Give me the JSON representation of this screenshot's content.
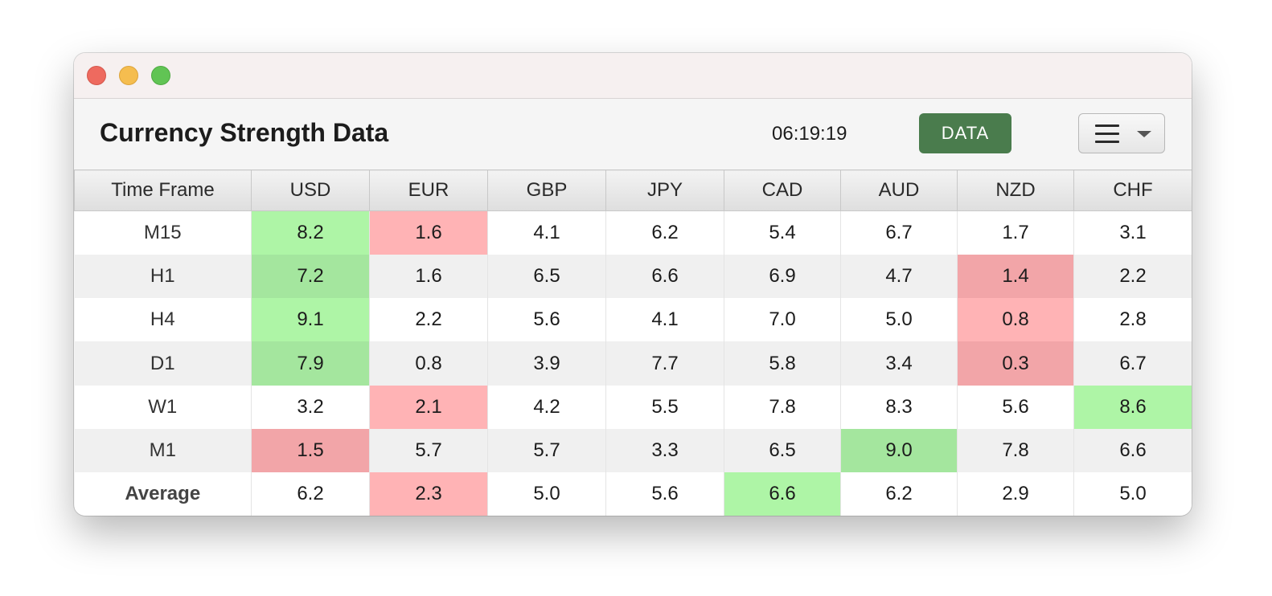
{
  "window": {
    "title": "Currency Strength Data",
    "clock": "06:19:19",
    "data_button_label": "DATA",
    "menu_icon": "hamburger-menu-icon"
  },
  "colors": {
    "strong": "#aef5a6",
    "weak": "#ffb3b5",
    "data_button": "#4a7c4d"
  },
  "table": {
    "columns": [
      "Time Frame",
      "USD",
      "EUR",
      "GBP",
      "JPY",
      "CAD",
      "AUD",
      "NZD",
      "CHF"
    ],
    "rows": [
      {
        "label": "M15",
        "values": [
          "8.2",
          "1.6",
          "4.1",
          "6.2",
          "5.4",
          "6.7",
          "1.7",
          "3.1"
        ]
      },
      {
        "label": "H1",
        "values": [
          "7.2",
          "1.6",
          "6.5",
          "6.6",
          "6.9",
          "4.7",
          "1.4",
          "2.2"
        ]
      },
      {
        "label": "H4",
        "values": [
          "9.1",
          "2.2",
          "5.6",
          "4.1",
          "7.0",
          "5.0",
          "0.8",
          "2.8"
        ]
      },
      {
        "label": "D1",
        "values": [
          "7.9",
          "0.8",
          "3.9",
          "7.7",
          "5.8",
          "3.4",
          "0.3",
          "6.7"
        ]
      },
      {
        "label": "W1",
        "values": [
          "3.2",
          "2.1",
          "4.2",
          "5.5",
          "7.8",
          "8.3",
          "5.6",
          "8.6"
        ]
      },
      {
        "label": "M1",
        "values": [
          "1.5",
          "5.7",
          "5.7",
          "3.3",
          "6.5",
          "9.0",
          "7.8",
          "6.6"
        ]
      },
      {
        "label": "Average",
        "values": [
          "6.2",
          "2.3",
          "5.0",
          "5.6",
          "6.6",
          "6.2",
          "2.9",
          "5.0"
        ]
      }
    ]
  }
}
